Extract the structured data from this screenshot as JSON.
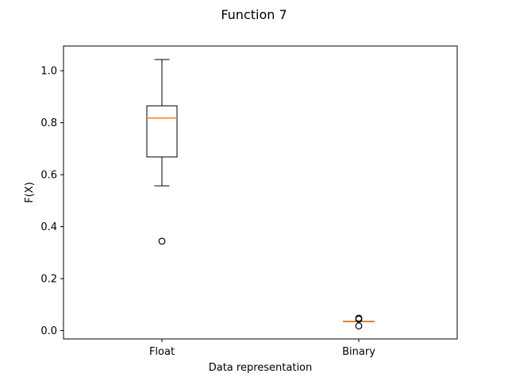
{
  "chart_data": {
    "type": "box",
    "title": "Function 7",
    "xlabel": "Data representation",
    "ylabel": "F(X)",
    "ylim": [
      -0.032,
      1.095
    ],
    "yticks": [
      0.0,
      0.2,
      0.4,
      0.6,
      0.8,
      1.0
    ],
    "ytick_labels": [
      "0.0",
      "0.2",
      "0.4",
      "0.6",
      "0.8",
      "1.0"
    ],
    "grid": false,
    "categories": [
      "Float",
      "Binary"
    ],
    "boxes": [
      {
        "category": "Float",
        "whisker_low": 0.557,
        "q1": 0.668,
        "median": 0.818,
        "q3": 0.865,
        "whisker_high": 1.043,
        "outliers": [
          0.344
        ]
      },
      {
        "category": "Binary",
        "whisker_low": 0.036,
        "q1": 0.036,
        "median": 0.036,
        "q3": 0.036,
        "whisker_high": 0.036,
        "outliers": [
          0.048,
          0.044,
          0.018
        ]
      }
    ],
    "colors": {
      "box": "#000000",
      "median": "#ff7f0e",
      "axes": "#000000"
    }
  }
}
